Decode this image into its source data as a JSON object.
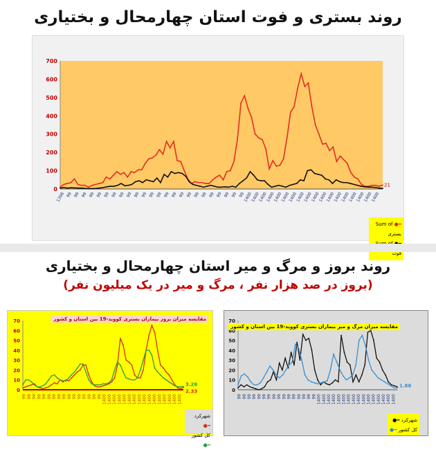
{
  "header": {
    "title": "روند بستری و فوت استان چهارمحال و بختیاری"
  },
  "section2": {
    "title": "روند بروز و مرگ و میر استان چهارمحال و بختیاری",
    "subtitle": "(بروز در صد هزار نفر ، مرگ و میر در یک میلیون نفر)"
  },
  "chart_data": [
    {
      "type": "line",
      "title": "",
      "ylim": [
        0,
        700
      ],
      "yticks": [
        0,
        100,
        200,
        300,
        400,
        500,
        600,
        700
      ],
      "grid": false,
      "legend": "bottom-right",
      "background": "#ffc966",
      "x_tick_labels": [
        "1398",
        "99",
        "99",
        "99",
        "99",
        "99",
        "99",
        "99",
        "99",
        "99",
        "99",
        "99",
        "99",
        "99",
        "99",
        "99",
        "99",
        "99",
        "99",
        "99",
        "99",
        "99",
        "99",
        "99",
        "99",
        "1400",
        "1400",
        "1400",
        "1400",
        "1400",
        "1400",
        "1400",
        "1400",
        "1400",
        "1400",
        "1400",
        "1400",
        "1400",
        "1400",
        "1400",
        "1400",
        "1400",
        "1400"
      ],
      "end_label": "21",
      "series": [
        {
          "name": "Sum of بستری",
          "color": "#e0301e",
          "values": [
            10,
            25,
            30,
            35,
            55,
            25,
            20,
            20,
            10,
            20,
            25,
            30,
            35,
            65,
            55,
            75,
            95,
            80,
            90,
            65,
            95,
            90,
            105,
            105,
            140,
            165,
            170,
            185,
            215,
            190,
            260,
            225,
            260,
            155,
            150,
            100,
            55,
            30,
            40,
            35,
            35,
            30,
            30,
            50,
            65,
            75,
            50,
            95,
            100,
            150,
            270,
            470,
            510,
            440,
            390,
            300,
            280,
            270,
            220,
            110,
            155,
            125,
            130,
            165,
            280,
            420,
            450,
            550,
            630,
            560,
            580,
            450,
            350,
            300,
            245,
            250,
            210,
            230,
            150,
            180,
            160,
            140,
            90,
            65,
            55,
            25,
            15,
            15,
            20,
            20,
            15,
            21
          ]
        },
        {
          "name": "Sum of فوت",
          "color": "#111111",
          "values": [
            5,
            8,
            5,
            7,
            6,
            5,
            5,
            3,
            2,
            2,
            3,
            5,
            8,
            12,
            15,
            15,
            20,
            30,
            18,
            20,
            25,
            40,
            45,
            35,
            50,
            45,
            40,
            60,
            35,
            80,
            65,
            95,
            85,
            90,
            85,
            70,
            40,
            25,
            20,
            15,
            10,
            15,
            20,
            15,
            10,
            10,
            12,
            10,
            15,
            10,
            30,
            45,
            60,
            95,
            75,
            50,
            45,
            45,
            25,
            10,
            15,
            20,
            15,
            10,
            20,
            25,
            30,
            50,
            45,
            100,
            105,
            85,
            80,
            75,
            55,
            50,
            30,
            50,
            40,
            35,
            35,
            30,
            25,
            20,
            15,
            12,
            10,
            10,
            8,
            5,
            3
          ]
        }
      ]
    },
    {
      "type": "line",
      "title": "مقایسه میزان بروز بیماران بستری کووید-19 بین استان و کشور",
      "ylim": [
        0,
        70
      ],
      "yticks": [
        0,
        10,
        20,
        30,
        40,
        50,
        60,
        70
      ],
      "grid": false,
      "legend": "bottom-right",
      "background": "#ffff00",
      "x_tick_labels": [
        "99",
        "99",
        "99",
        "99",
        "99",
        "99",
        "99",
        "99",
        "99",
        "99",
        "99",
        "99",
        "99",
        "99",
        "99",
        "99",
        "1400",
        "1400",
        "1400",
        "1400",
        "1400",
        "1400",
        "1400",
        "1400",
        "1400",
        "1400",
        "1400",
        "1400",
        "1400",
        "1400",
        "1400",
        "1400"
      ],
      "series": [
        {
          "name": "شهرکرد",
          "color": "#d0301e",
          "end_label": "2.33",
          "values": [
            2,
            3,
            4,
            5,
            6,
            3,
            2,
            1,
            2,
            3,
            5,
            7,
            6,
            10,
            8,
            10,
            9,
            12,
            15,
            18,
            20,
            25,
            25,
            15,
            8,
            4,
            3,
            3,
            4,
            5,
            6,
            8,
            12,
            25,
            52,
            45,
            30,
            28,
            25,
            15,
            12,
            12,
            20,
            40,
            55,
            65,
            58,
            40,
            25,
            22,
            18,
            15,
            10,
            5,
            2,
            1,
            2.33
          ]
        },
        {
          "name": "کل کشور",
          "color": "#2e9a48",
          "end_label": "3.26",
          "values": [
            5,
            10,
            10,
            8,
            5,
            3,
            3,
            4,
            6,
            10,
            14,
            15,
            12,
            10,
            9,
            9,
            12,
            15,
            18,
            22,
            26,
            26,
            18,
            10,
            6,
            5,
            5,
            5,
            6,
            6,
            7,
            10,
            20,
            28,
            25,
            18,
            12,
            11,
            10,
            10,
            12,
            20,
            30,
            40,
            40,
            35,
            22,
            18,
            15,
            12,
            10,
            8,
            6,
            4,
            3,
            3,
            3.26
          ]
        }
      ]
    },
    {
      "type": "line",
      "title": "مقایسه میزان مرگ و میر بیماران بستری کووید-19 بین استان و کشور",
      "ylim": [
        0,
        70
      ],
      "yticks": [
        0,
        10,
        20,
        30,
        40,
        50,
        60,
        70
      ],
      "grid": false,
      "legend": "bottom-right",
      "background": "#dcdcdc",
      "x_tick_labels": [
        "99",
        "99",
        "99",
        "99",
        "99",
        "99",
        "99",
        "99",
        "99",
        "99",
        "99",
        "99",
        "99",
        "99",
        "99",
        "99",
        "1400",
        "1400",
        "1400",
        "1400",
        "1400",
        "1400",
        "1400",
        "1400",
        "1400",
        "1400",
        "1400",
        "1400",
        "1400",
        "1400",
        "1400",
        "1400"
      ],
      "series": [
        {
          "name": "شهرکرد",
          "color": "#111111",
          "values": [
            2,
            5,
            3,
            5,
            3,
            2,
            1,
            0,
            1,
            3,
            8,
            10,
            18,
            10,
            27,
            20,
            32,
            22,
            38,
            25,
            48,
            30,
            56,
            50,
            52,
            40,
            20,
            10,
            5,
            8,
            6,
            5,
            7,
            10,
            8,
            55,
            38,
            28,
            25,
            8,
            15,
            8,
            15,
            25,
            58,
            60,
            50,
            32,
            28,
            20,
            15,
            8,
            5,
            4,
            3
          ]
        },
        {
          "name": "کل کشور",
          "color": "#3a8fd0",
          "end_label": "1.88",
          "values": [
            5,
            14,
            16,
            13,
            8,
            5,
            5,
            7,
            12,
            18,
            24,
            20,
            15,
            12,
            15,
            20,
            25,
            28,
            46,
            42,
            30,
            15,
            10,
            8,
            7,
            6,
            7,
            8,
            9,
            20,
            36,
            28,
            20,
            14,
            10,
            12,
            15,
            25,
            50,
            55,
            45,
            30,
            20,
            16,
            12,
            10,
            8,
            6,
            4,
            2,
            1.88
          ]
        }
      ]
    }
  ]
}
